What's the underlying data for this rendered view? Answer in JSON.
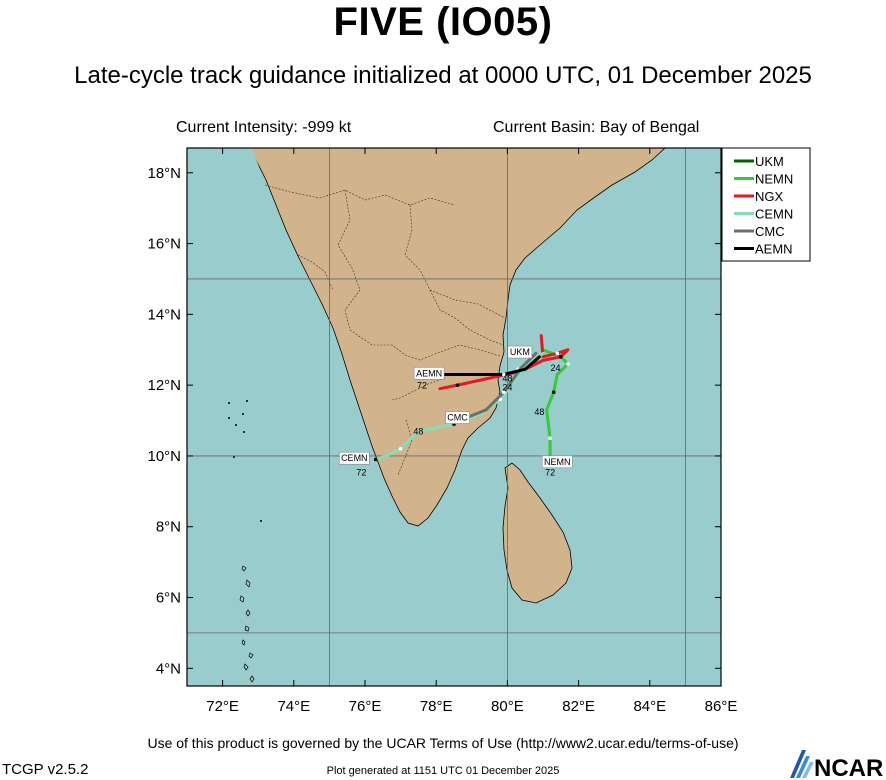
{
  "header": {
    "title": "FIVE (IO05)",
    "subtitle": "Late-cycle track guidance initialized at 0000 UTC, 01 December 2025",
    "intensity": "Current Intensity: -999 kt",
    "basin": "Current Basin: Bay of Bengal"
  },
  "footer": {
    "terms": "Use of this product is governed by the UCAR Terms of Use (http://www2.ucar.edu/terms-of-use)",
    "version": "TCGP v2.5.2",
    "generated": "Plot generated at 1151 UTC   01 December 2025",
    "logo_text": "NCAR"
  },
  "colors": {
    "ocean": "#99cccc",
    "land": "#d2b48c",
    "UKM": "#006400",
    "NEMN": "#33cc33",
    "NGX": "#e6191e",
    "CEMN": "#80e0b8",
    "CMC": "#6e6e6e",
    "AEMN": "#000000"
  },
  "map": {
    "lon_range": [
      71,
      86
    ],
    "lat_range": [
      3.5,
      18.7
    ],
    "lon_ticks": [
      {
        "v": 72,
        "label": "72°E"
      },
      {
        "v": 74,
        "label": "74°E"
      },
      {
        "v": 76,
        "label": "76°E"
      },
      {
        "v": 78,
        "label": "78°E"
      },
      {
        "v": 80,
        "label": "80°E"
      },
      {
        "v": 82,
        "label": "82°E"
      },
      {
        "v": 84,
        "label": "84°E"
      },
      {
        "v": 86,
        "label": "86°E"
      }
    ],
    "lat_ticks": [
      {
        "v": 4,
        "label": "4°N"
      },
      {
        "v": 6,
        "label": "6°N"
      },
      {
        "v": 8,
        "label": "8°N"
      },
      {
        "v": 10,
        "label": "10°N"
      },
      {
        "v": 12,
        "label": "12°N"
      },
      {
        "v": 14,
        "label": "14°N"
      },
      {
        "v": 16,
        "label": "16°N"
      },
      {
        "v": 18,
        "label": "18°N"
      }
    ],
    "gridlines_lon": [
      75,
      80,
      85
    ],
    "gridlines_lat": [
      5,
      10,
      15
    ]
  },
  "legend": {
    "entries": [
      "UKM",
      "NEMN",
      "NGX",
      "CEMN",
      "CMC",
      "AEMN"
    ]
  },
  "tracks": [
    {
      "model": "UKM",
      "points": [
        [
          80.9,
          12.8
        ],
        [
          80.6,
          12.5
        ],
        [
          80.3,
          12.45
        ]
      ],
      "label": {
        "text": "UKM",
        "at": [
          80.35,
          12.85
        ]
      },
      "hour_labels": []
    },
    {
      "model": "NEMN",
      "points": [
        [
          81.0,
          13.0
        ],
        [
          81.5,
          12.8
        ],
        [
          81.7,
          12.6
        ],
        [
          81.4,
          12.3
        ],
        [
          81.3,
          11.8
        ],
        [
          81.1,
          11.3
        ],
        [
          81.2,
          10.5
        ],
        [
          81.2,
          9.9
        ]
      ],
      "label": {
        "text": "NEMN",
        "at": [
          81.4,
          9.75
        ]
      },
      "hour_labels": [
        {
          "text": "24",
          "at": [
            81.35,
            12.4
          ]
        },
        {
          "text": "48",
          "at": [
            80.9,
            11.15
          ]
        },
        {
          "text": "72",
          "at": [
            81.2,
            9.45
          ]
        }
      ]
    },
    {
      "model": "NGX",
      "points": [
        [
          80.95,
          13.4
        ],
        [
          81.0,
          12.8
        ],
        [
          81.4,
          12.9
        ],
        [
          81.7,
          13.0
        ],
        [
          81.5,
          12.8
        ],
        [
          81.0,
          12.7
        ],
        [
          80.4,
          12.4
        ],
        [
          79.5,
          12.2
        ],
        [
          78.6,
          12.0
        ],
        [
          78.1,
          11.9
        ]
      ],
      "label": null,
      "hour_labels": []
    },
    {
      "model": "CEMN",
      "points": [
        [
          81.0,
          12.9
        ],
        [
          80.5,
          12.5
        ],
        [
          79.8,
          11.6
        ],
        [
          79.3,
          11.2
        ],
        [
          78.5,
          10.9
        ],
        [
          77.5,
          10.7
        ],
        [
          77.0,
          10.2
        ],
        [
          76.6,
          10.0
        ],
        [
          76.3,
          9.9
        ]
      ],
      "label": {
        "text": "CEMN",
        "at": [
          75.7,
          9.85
        ]
      },
      "hour_labels": [
        {
          "text": "48",
          "at": [
            77.5,
            10.6
          ]
        },
        {
          "text": "72",
          "at": [
            75.9,
            9.45
          ]
        }
      ]
    },
    {
      "model": "CMC",
      "points": [
        [
          80.8,
          12.9
        ],
        [
          80.4,
          12.5
        ],
        [
          79.9,
          11.8
        ],
        [
          79.4,
          11.3
        ],
        [
          78.9,
          11.1
        ]
      ],
      "label": {
        "text": "CMC",
        "at": [
          78.6,
          11.0
        ]
      },
      "hour_labels": [
        {
          "text": "24",
          "at": [
            80.0,
            11.85
          ]
        }
      ]
    },
    {
      "model": "AEMN",
      "points": [
        [
          80.9,
          12.8
        ],
        [
          80.5,
          12.45
        ],
        [
          79.9,
          12.3
        ],
        [
          78.9,
          12.3
        ],
        [
          78.1,
          12.3
        ]
      ],
      "label": {
        "text": "AEMN",
        "at": [
          77.8,
          12.25
        ]
      },
      "hour_labels": [
        {
          "text": "72",
          "at": [
            77.6,
            11.9
          ]
        },
        {
          "text": "48",
          "at": [
            80.0,
            12.1
          ]
        }
      ]
    }
  ]
}
